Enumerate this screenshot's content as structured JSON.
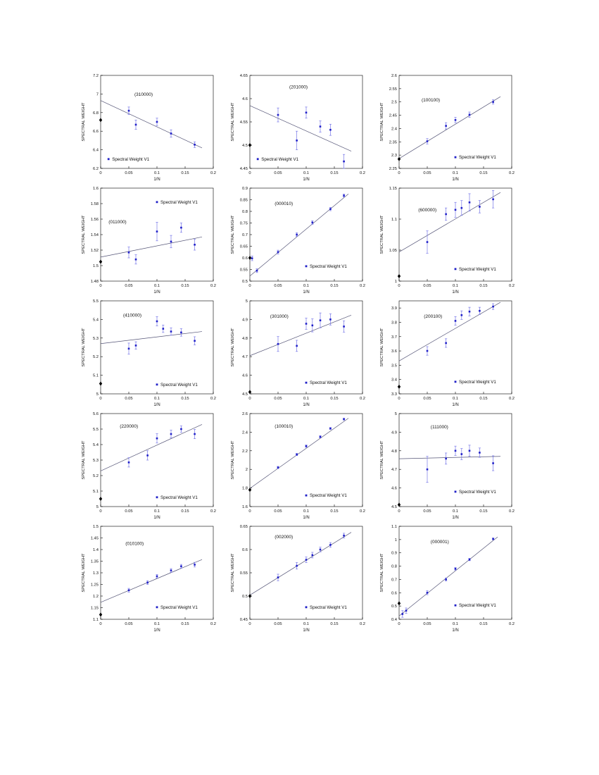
{
  "page": {
    "background": "#ffffff"
  },
  "figure": {
    "xlabel": "1/N",
    "ylabel": "SPECTRAL WEIGHT",
    "legend_label": "Spectral Weight V1",
    "xlim": [
      0,
      0.2
    ],
    "xticks": [
      0,
      0.05,
      0.1,
      0.15,
      0.2
    ],
    "colors": {
      "point": "#2020c8",
      "error_bar": "#7878e8",
      "fit_line": "#555577",
      "diamond": "#000000",
      "axis": "#000000",
      "text": "#111111"
    }
  },
  "chart_data": [
    {
      "type": "scatter",
      "label": "(310000)",
      "ylim": [
        6.2,
        7.2
      ],
      "yticks": [
        6.2,
        6.4,
        6.6,
        6.8,
        7,
        7.2
      ],
      "fit": {
        "x": [
          0,
          0.18
        ],
        "y": [
          6.93,
          6.42
        ]
      },
      "points": [
        [
          0.05,
          6.82,
          0.04
        ],
        [
          0.0625,
          6.67,
          0.05
        ],
        [
          0.1,
          6.7,
          0.04
        ],
        [
          0.125,
          6.575,
          0.04
        ],
        [
          0.167,
          6.455,
          0.03
        ]
      ],
      "diamond": [
        0,
        6.72
      ],
      "label_pos": [
        0.3,
        0.78
      ],
      "legend_pos": [
        0.07,
        0.1
      ]
    },
    {
      "type": "scatter",
      "label": "(201000)",
      "ylim": [
        4.45,
        4.65
      ],
      "yticks": [
        4.45,
        4.5,
        4.55,
        4.6,
        4.65
      ],
      "fit": {
        "x": [
          0,
          0.18
        ],
        "y": [
          4.585,
          4.487
        ]
      },
      "points": [
        [
          0.05,
          4.565,
          0.015
        ],
        [
          0.0833,
          4.51,
          0.02
        ],
        [
          0.1,
          4.57,
          0.012
        ],
        [
          0.125,
          4.54,
          0.012
        ],
        [
          0.143,
          4.533,
          0.012
        ],
        [
          0.167,
          4.465,
          0.015
        ]
      ],
      "diamond": [
        0,
        4.5
      ],
      "label_pos": [
        0.35,
        0.86
      ],
      "legend_pos": [
        0.07,
        0.1
      ]
    },
    {
      "type": "scatter",
      "label": "(100100)",
      "ylim": [
        2.25,
        2.6
      ],
      "yticks": [
        2.25,
        2.3,
        2.35,
        2.4,
        2.45,
        2.5,
        2.55,
        2.6
      ],
      "fit": {
        "x": [
          0,
          0.18
        ],
        "y": [
          2.287,
          2.52
        ]
      },
      "points": [
        [
          0.05,
          2.352,
          0.01
        ],
        [
          0.0833,
          2.41,
          0.012
        ],
        [
          0.1,
          2.432,
          0.01
        ],
        [
          0.125,
          2.452,
          0.01
        ],
        [
          0.167,
          2.5,
          0.008
        ]
      ],
      "diamond": [
        0,
        2.285
      ],
      "label_pos": [
        0.2,
        0.72
      ],
      "legend_pos": [
        0.5,
        0.12
      ]
    },
    {
      "type": "scatter",
      "label": "(011000)",
      "ylim": [
        1.48,
        1.6
      ],
      "yticks": [
        1.48,
        1.5,
        1.52,
        1.54,
        1.56,
        1.58,
        1.6
      ],
      "fit": {
        "x": [
          0,
          0.18
        ],
        "y": [
          1.511,
          1.537
        ]
      },
      "points": [
        [
          0.05,
          1.517,
          0.007
        ],
        [
          0.0625,
          1.508,
          0.006
        ],
        [
          0.1,
          1.544,
          0.012
        ],
        [
          0.125,
          1.531,
          0.008
        ],
        [
          0.143,
          1.549,
          0.006
        ],
        [
          0.167,
          1.527,
          0.007
        ]
      ],
      "diamond": [
        0,
        1.505
      ],
      "label_pos": [
        0.07,
        0.62
      ],
      "legend_pos": [
        0.5,
        0.85
      ]
    },
    {
      "type": "scatter",
      "label": "(000010)",
      "ylim": [
        0.5,
        0.9
      ],
      "yticks": [
        0.5,
        0.55,
        0.6,
        0.65,
        0.7,
        0.75,
        0.8,
        0.85,
        0.9
      ],
      "fit": {
        "x": [
          0,
          0.175
        ],
        "y": [
          0.522,
          0.875
        ]
      },
      "points": [
        [
          0.004,
          0.598,
          0.01
        ],
        [
          0.0125,
          0.545,
          0.008
        ],
        [
          0.05,
          0.625,
          0.008
        ],
        [
          0.0833,
          0.7,
          0.008
        ],
        [
          0.111,
          0.752,
          0.008
        ],
        [
          0.143,
          0.81,
          0.007
        ],
        [
          0.167,
          0.868,
          0.006
        ]
      ],
      "diamond": [
        0,
        0.6
      ],
      "label_pos": [
        0.22,
        0.82
      ],
      "legend_pos": [
        0.5,
        0.16
      ]
    },
    {
      "type": "scatter",
      "label": "(600000)",
      "ylim": [
        1,
        1.15
      ],
      "yticks": [
        1,
        1.05,
        1.1,
        1.15
      ],
      "fit": {
        "x": [
          0,
          0.18
        ],
        "y": [
          1.047,
          1.143
        ]
      },
      "points": [
        [
          0.05,
          1.063,
          0.018
        ],
        [
          0.0833,
          1.108,
          0.01
        ],
        [
          0.1,
          1.115,
          0.012
        ],
        [
          0.111,
          1.118,
          0.012
        ],
        [
          0.125,
          1.127,
          0.014
        ],
        [
          0.143,
          1.12,
          0.01
        ],
        [
          0.167,
          1.132,
          0.014
        ]
      ],
      "diamond": [
        0,
        1.008
      ],
      "label_pos": [
        0.17,
        0.75
      ],
      "legend_pos": [
        0.5,
        0.13
      ]
    },
    {
      "type": "scatter",
      "label": "(410000)",
      "ylim": [
        5,
        5.5
      ],
      "yticks": [
        5,
        5.1,
        5.2,
        5.3,
        5.4,
        5.5
      ],
      "fit": {
        "x": [
          0,
          0.18
        ],
        "y": [
          5.27,
          5.335
        ]
      },
      "points": [
        [
          0.05,
          5.243,
          0.03
        ],
        [
          0.0625,
          5.26,
          0.02
        ],
        [
          0.1,
          5.39,
          0.025
        ],
        [
          0.111,
          5.35,
          0.02
        ],
        [
          0.125,
          5.335,
          0.02
        ],
        [
          0.143,
          5.33,
          0.02
        ],
        [
          0.167,
          5.285,
          0.022
        ]
      ],
      "diamond": [
        0,
        5.055
      ],
      "label_pos": [
        0.2,
        0.83
      ],
      "legend_pos": [
        0.5,
        0.1
      ]
    },
    {
      "type": "scatter",
      "label": "(301000)",
      "ylim": [
        4.5,
        5
      ],
      "yticks": [
        4.5,
        4.6,
        4.7,
        4.8,
        4.9,
        5
      ],
      "fit": {
        "x": [
          0,
          0.18
        ],
        "y": [
          4.705,
          4.923
        ]
      },
      "points": [
        [
          0.05,
          4.768,
          0.04
        ],
        [
          0.0833,
          4.758,
          0.03
        ],
        [
          0.1,
          4.877,
          0.03
        ],
        [
          0.111,
          4.868,
          0.035
        ],
        [
          0.125,
          4.895,
          0.04
        ],
        [
          0.143,
          4.9,
          0.03
        ],
        [
          0.167,
          4.862,
          0.03
        ]
      ],
      "diamond": [
        0,
        4.51
      ],
      "label_pos": [
        0.18,
        0.82
      ],
      "legend_pos": [
        0.5,
        0.12
      ]
    },
    {
      "type": "scatter",
      "label": "(200100)",
      "ylim": [
        3.3,
        3.95
      ],
      "yticks": [
        3.3,
        3.4,
        3.5,
        3.6,
        3.7,
        3.8,
        3.9
      ],
      "fit": {
        "x": [
          0,
          0.18
        ],
        "y": [
          3.53,
          3.94
        ]
      },
      "points": [
        [
          0.05,
          3.6,
          0.03
        ],
        [
          0.0833,
          3.655,
          0.03
        ],
        [
          0.1,
          3.81,
          0.03
        ],
        [
          0.111,
          3.85,
          0.03
        ],
        [
          0.125,
          3.875,
          0.03
        ],
        [
          0.143,
          3.88,
          0.025
        ],
        [
          0.167,
          3.91,
          0.02
        ]
      ],
      "diamond": [
        0,
        3.35
      ],
      "label_pos": [
        0.22,
        0.82
      ],
      "legend_pos": [
        0.5,
        0.13
      ]
    },
    {
      "type": "scatter",
      "label": "(220000)",
      "ylim": [
        5,
        5.6
      ],
      "yticks": [
        5,
        5.1,
        5.2,
        5.3,
        5.4,
        5.5,
        5.6
      ],
      "fit": {
        "x": [
          0,
          0.18
        ],
        "y": [
          5.23,
          5.53
        ]
      },
      "points": [
        [
          0.05,
          5.285,
          0.03
        ],
        [
          0.0833,
          5.33,
          0.03
        ],
        [
          0.1,
          5.44,
          0.03
        ],
        [
          0.125,
          5.468,
          0.025
        ],
        [
          0.143,
          5.5,
          0.02
        ],
        [
          0.167,
          5.468,
          0.03
        ]
      ],
      "diamond": [
        0,
        5.05
      ],
      "label_pos": [
        0.17,
        0.85
      ],
      "legend_pos": [
        0.5,
        0.1
      ]
    },
    {
      "type": "scatter",
      "label": "(100010)",
      "ylim": [
        1.6,
        2.6
      ],
      "yticks": [
        1.6,
        1.8,
        2,
        2.2,
        2.4,
        2.6
      ],
      "fit": {
        "x": [
          0,
          0.175
        ],
        "y": [
          1.795,
          2.55
        ]
      },
      "points": [
        [
          0.05,
          2.02,
          0.012
        ],
        [
          0.0833,
          2.16,
          0.012
        ],
        [
          0.1,
          2.25,
          0.012
        ],
        [
          0.125,
          2.35,
          0.012
        ],
        [
          0.143,
          2.44,
          0.01
        ],
        [
          0.167,
          2.54,
          0.01
        ]
      ],
      "diamond": [
        0,
        1.78
      ],
      "label_pos": [
        0.22,
        0.85
      ],
      "legend_pos": [
        0.5,
        0.12
      ]
    },
    {
      "type": "scatter",
      "label": "(111000)",
      "ylim": [
        4.5,
        5
      ],
      "yticks": [
        4.5,
        4.6,
        4.7,
        4.8,
        4.9,
        5
      ],
      "fit": {
        "x": [
          0,
          0.18
        ],
        "y": [
          4.757,
          4.77
        ]
      },
      "points": [
        [
          0.05,
          4.7,
          0.07
        ],
        [
          0.0833,
          4.758,
          0.03
        ],
        [
          0.1,
          4.8,
          0.025
        ],
        [
          0.111,
          4.782,
          0.03
        ],
        [
          0.125,
          4.8,
          0.03
        ],
        [
          0.143,
          4.79,
          0.025
        ],
        [
          0.167,
          4.733,
          0.04
        ]
      ],
      "diamond": [
        0,
        4.51
      ],
      "label_pos": [
        0.28,
        0.84
      ],
      "legend_pos": [
        0.5,
        0.16
      ]
    },
    {
      "type": "scatter",
      "label": "(010100)",
      "ylim": [
        1.1,
        1.5
      ],
      "yticks": [
        1.1,
        1.15,
        1.2,
        1.25,
        1.3,
        1.35,
        1.4,
        1.45,
        1.5
      ],
      "fit": {
        "x": [
          0,
          0.18
        ],
        "y": [
          1.173,
          1.357
        ]
      },
      "points": [
        [
          0.05,
          1.225,
          0.008
        ],
        [
          0.0833,
          1.258,
          0.008
        ],
        [
          0.1,
          1.285,
          0.008
        ],
        [
          0.125,
          1.31,
          0.008
        ],
        [
          0.143,
          1.328,
          0.008
        ],
        [
          0.167,
          1.335,
          0.01
        ]
      ],
      "diamond": [
        0,
        1.12
      ],
      "label_pos": [
        0.22,
        0.8
      ],
      "legend_pos": [
        0.5,
        0.13
      ]
    },
    {
      "type": "scatter",
      "label": "(002000)",
      "ylim": [
        0.45,
        0.65
      ],
      "yticks": [
        0.45,
        0.5,
        0.55,
        0.6,
        0.65
      ],
      "fit": {
        "x": [
          0,
          0.18
        ],
        "y": [
          0.502,
          0.637
        ]
      },
      "points": [
        [
          0.05,
          0.54,
          0.007
        ],
        [
          0.0833,
          0.565,
          0.007
        ],
        [
          0.1,
          0.578,
          0.006
        ],
        [
          0.111,
          0.588,
          0.006
        ],
        [
          0.125,
          0.6,
          0.005
        ],
        [
          0.143,
          0.61,
          0.005
        ],
        [
          0.167,
          0.63,
          0.005
        ]
      ],
      "diamond": [
        0,
        0.5
      ],
      "label_pos": [
        0.22,
        0.87
      ],
      "legend_pos": [
        0.5,
        0.13
      ]
    },
    {
      "type": "scatter",
      "label": "(000001)",
      "ylim": [
        0.4,
        1.1
      ],
      "yticks": [
        0.4,
        0.5,
        0.6,
        0.7,
        0.8,
        0.9,
        1,
        1.1
      ],
      "fit": {
        "x": [
          0,
          0.175
        ],
        "y": [
          0.425,
          1.02
        ]
      },
      "points": [
        [
          0.006,
          0.44,
          0.025
        ],
        [
          0.0125,
          0.465,
          0.02
        ],
        [
          0.05,
          0.6,
          0.015
        ],
        [
          0.0833,
          0.7,
          0.012
        ],
        [
          0.1,
          0.78,
          0.01
        ],
        [
          0.125,
          0.85,
          0.009
        ],
        [
          0.167,
          1.005,
          0.007
        ]
      ],
      "diamond": [
        0,
        0.52
      ],
      "label_pos": [
        0.28,
        0.82
      ],
      "legend_pos": [
        0.5,
        0.15
      ]
    }
  ]
}
